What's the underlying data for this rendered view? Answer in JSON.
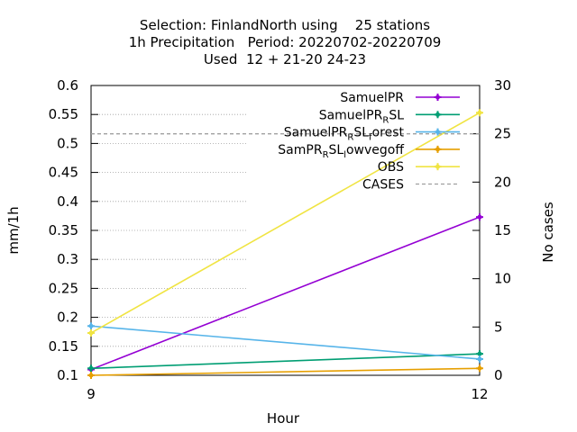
{
  "chart_data": {
    "type": "line",
    "title_lines": [
      "Selection: FinlandNorth using    25 stations",
      "1h Precipitation   Period: 20220702-20220709",
      "Used  12 + 21-20 24-23"
    ],
    "xlabel": "Hour",
    "ylabel": "mm/1h",
    "y2label": "No cases",
    "x": [
      9,
      12
    ],
    "xlim": [
      9,
      12
    ],
    "ylim": [
      0.1,
      0.6
    ],
    "y2lim": [
      0,
      30
    ],
    "x_ticks": [
      9,
      12
    ],
    "y_ticks": [
      0.1,
      0.15,
      0.2,
      0.25,
      0.3,
      0.35,
      0.4,
      0.45,
      0.5,
      0.55,
      0.6
    ],
    "y2_ticks": [
      0,
      5,
      10,
      15,
      20,
      25,
      30
    ],
    "legend_position": "top-right",
    "series": [
      {
        "name": "SamuelPR",
        "label_main": "SamuelPR",
        "label_sub": "",
        "label_tail": "",
        "axis": "y",
        "color": "#9400d3",
        "marker": "plus",
        "values": [
          0.11,
          0.373
        ]
      },
      {
        "name": "SamuelPR_R SL",
        "label_main": "SamuelPR",
        "label_sub": "R",
        "label_tail": "SL",
        "axis": "y",
        "color": "#009e73",
        "marker": "plus",
        "values": [
          0.112,
          0.137
        ]
      },
      {
        "name": "SamuelPR_R SL_forest",
        "label_main": "SamuelPR",
        "label_sub": "R",
        "label_tail": "SL",
        "label_sub2": "f",
        "label_tail2": "orest",
        "axis": "y",
        "color": "#56b4e9",
        "marker": "plus",
        "values": [
          0.185,
          0.128
        ]
      },
      {
        "name": "SamPR_R SL_lowvegoff",
        "label_main": "SamPR",
        "label_sub": "R",
        "label_tail": "SL",
        "label_sub2": "l",
        "label_tail2": "owvegoff",
        "axis": "y",
        "color": "#e69f00",
        "marker": "plus",
        "values": [
          0.1,
          0.112
        ]
      },
      {
        "name": "OBS",
        "label_main": "OBS",
        "label_sub": "",
        "label_tail": "",
        "axis": "y",
        "color": "#f0e442",
        "marker": "plus",
        "values": [
          0.173,
          0.553
        ]
      },
      {
        "name": "CASES",
        "label_main": "CASES",
        "label_sub": "",
        "label_tail": "",
        "axis": "y2",
        "color": "#a0a0a0",
        "marker": "none",
        "dashed": true,
        "values": [
          25,
          25
        ]
      }
    ]
  }
}
